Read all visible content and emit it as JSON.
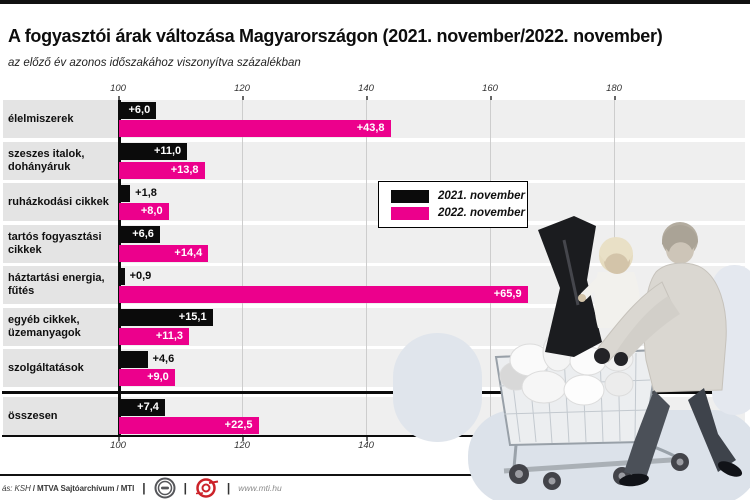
{
  "header": {
    "title": "A fogyasztói árak változása Magyarországon (2021. november/2022. november)",
    "subtitle": "az előző év azonos időszakához viszonyítva százalékban"
  },
  "chart_data": {
    "type": "bar",
    "orientation": "horizontal",
    "title": "A fogyasztói árak változása Magyarországon (2021. november/2022. november)",
    "subtitle": "az előző év azonos időszakához viszonyítva százalékban",
    "categories": [
      "élelmiszerek",
      "szeszes italok,\ndohányáruk",
      "ruházkodási cikkek",
      "tartós fogyasztási\ncikkek",
      "háztartási energia,\nfűtés",
      "egyéb cikkek,\nüzemanyagok",
      "szolgáltatások",
      "összesen"
    ],
    "series": [
      {
        "name": "2021. november",
        "color": "#0b0b0b",
        "values": [
          6.0,
          11.0,
          1.8,
          6.6,
          0.9,
          15.1,
          4.6,
          7.4
        ],
        "labels": [
          "+6,0",
          "+11,0",
          "+1,8",
          "+6,6",
          "+0,9",
          "+15,1",
          "+4,6",
          "+7,4"
        ]
      },
      {
        "name": "2022. november",
        "color": "#ec008c",
        "values": [
          43.8,
          13.8,
          8.0,
          14.4,
          65.9,
          11.3,
          9.0,
          22.5
        ],
        "labels": [
          "+43,8",
          "+13,8",
          "+8,0",
          "+14,4",
          "+65,9",
          "+11,3",
          "+9,0",
          "+22,5"
        ]
      }
    ],
    "x_axis": {
      "ticks": [
        100,
        120,
        140,
        160,
        180
      ],
      "min": 100,
      "max": 201
    },
    "legend": {
      "position": "center-right",
      "entries": [
        "2021. november",
        "2022. november"
      ]
    },
    "grid": true
  },
  "colors": {
    "accent_magenta": "#ec008c",
    "bar_black": "#0b0b0b",
    "band_label_col": "#e4e4e4",
    "band_plot": "#efefef",
    "gridline": "#cdcdcd"
  },
  "illustration": {
    "name": "woman-pushing-shopping-cart-with-child",
    "style": "grayscale cutout photo over light blue-gray blobs"
  },
  "footer": {
    "credits_italic": "ás: KSH",
    "credits_bold": " / MTVA Sajtóarchívum / MTI",
    "separator": "|",
    "icons": [
      "mtva-roundel-icon",
      "mti-roundel-icon"
    ],
    "url": "www.mti.hu"
  }
}
